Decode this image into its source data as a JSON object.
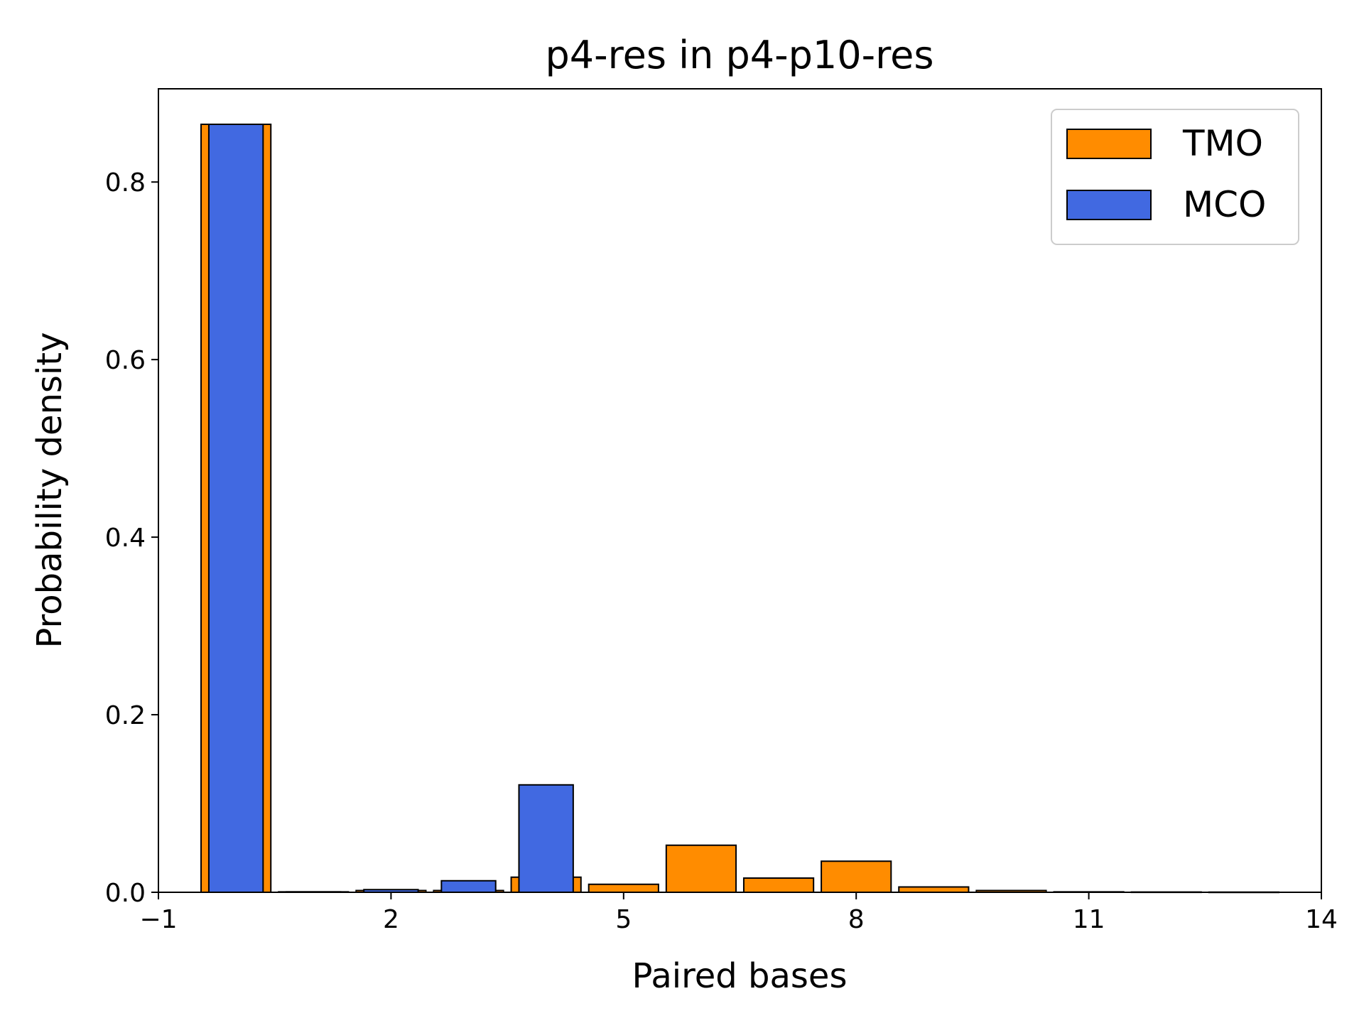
{
  "chart_data": {
    "type": "bar",
    "title": "p4-res in p4-p10-res",
    "xlabel": "Paired bases",
    "ylabel": "Probability density",
    "xlim": [
      -1,
      14
    ],
    "ylim": [
      0,
      0.905
    ],
    "xticks": [
      -1,
      2,
      5,
      8,
      11,
      14
    ],
    "xtick_labels": [
      "−1",
      "2",
      "5",
      "8",
      "11",
      "14"
    ],
    "yticks": [
      0.0,
      0.2,
      0.4,
      0.6,
      0.8
    ],
    "ytick_labels": [
      "0.0",
      "0.2",
      "0.4",
      "0.6",
      "0.8"
    ],
    "grid": false,
    "legend_position": "top-right",
    "series": [
      {
        "name": "TMO",
        "color": "#ff8c00",
        "x": [
          0,
          1,
          2,
          3,
          4,
          5,
          6,
          7,
          8,
          9,
          10,
          11,
          12,
          13
        ],
        "values": [
          0.865,
          0.0005,
          0.002,
          0.002,
          0.017,
          0.009,
          0.053,
          0.016,
          0.035,
          0.006,
          0.002,
          0.0005,
          0.0003,
          0.0002
        ]
      },
      {
        "name": "MCO",
        "color": "#4169e1",
        "x": [
          0,
          1,
          2,
          3,
          4
        ],
        "values": [
          0.865,
          0.0005,
          0.003,
          0.013,
          0.121
        ]
      }
    ]
  }
}
